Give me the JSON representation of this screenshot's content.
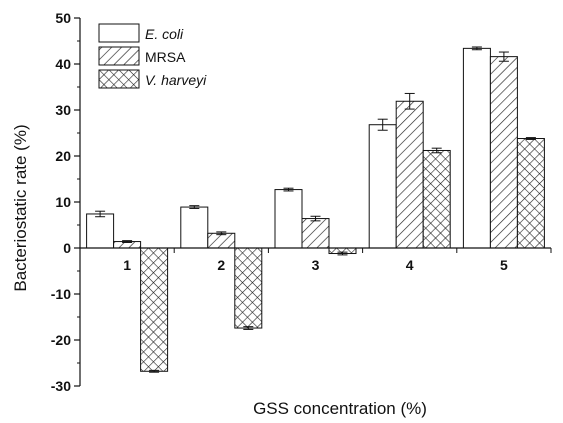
{
  "chart_data": {
    "type": "bar",
    "title": "",
    "xlabel": "GSS concentration (%)",
    "ylabel": "Bacteriostatic rate (%)",
    "categories": [
      "1",
      "2",
      "3",
      "4",
      "5"
    ],
    "ylim": [
      -30,
      50
    ],
    "yticks": [
      -30,
      -20,
      -10,
      0,
      10,
      20,
      30,
      40,
      50
    ],
    "grid": false,
    "legend_position": "top-left",
    "series": [
      {
        "name": "E. coli",
        "name_style": "italic",
        "pattern": "none",
        "values": [
          7.4,
          8.9,
          12.7,
          26.8,
          43.4
        ],
        "errors": [
          0.6,
          0.3,
          0.3,
          1.2,
          0.3
        ]
      },
      {
        "name": "MRSA",
        "name_style": "normal",
        "pattern": "diagonal-hatch",
        "values": [
          1.4,
          3.2,
          6.4,
          31.9,
          41.6
        ],
        "errors": [
          0.2,
          0.3,
          0.5,
          1.7,
          1.0
        ]
      },
      {
        "name": "V. harveyi",
        "name_style": "italic",
        "pattern": "cross-hatch",
        "values": [
          -26.8,
          -17.4,
          -1.2,
          21.2,
          23.8
        ],
        "errors": [
          0.2,
          0.3,
          0.3,
          0.5,
          0.2
        ]
      }
    ]
  }
}
